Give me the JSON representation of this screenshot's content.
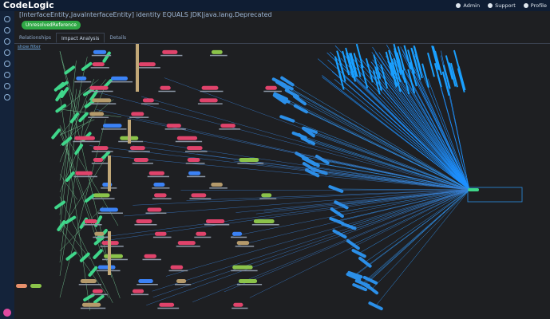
{
  "header": {
    "logo": "CodeLogic",
    "nav": [
      "Admin",
      "Support",
      "Profile"
    ]
  },
  "query": {
    "title": "[InterfaceEntity,JavaInterfaceEntity] identity EQUALS JDK|java.lang.Deprecated",
    "badge": "UnresolvedReference"
  },
  "tabs": [
    "Relationships",
    "Impact Analysis",
    "Details"
  ],
  "graph": {
    "filter_toggle": "show filter"
  }
}
